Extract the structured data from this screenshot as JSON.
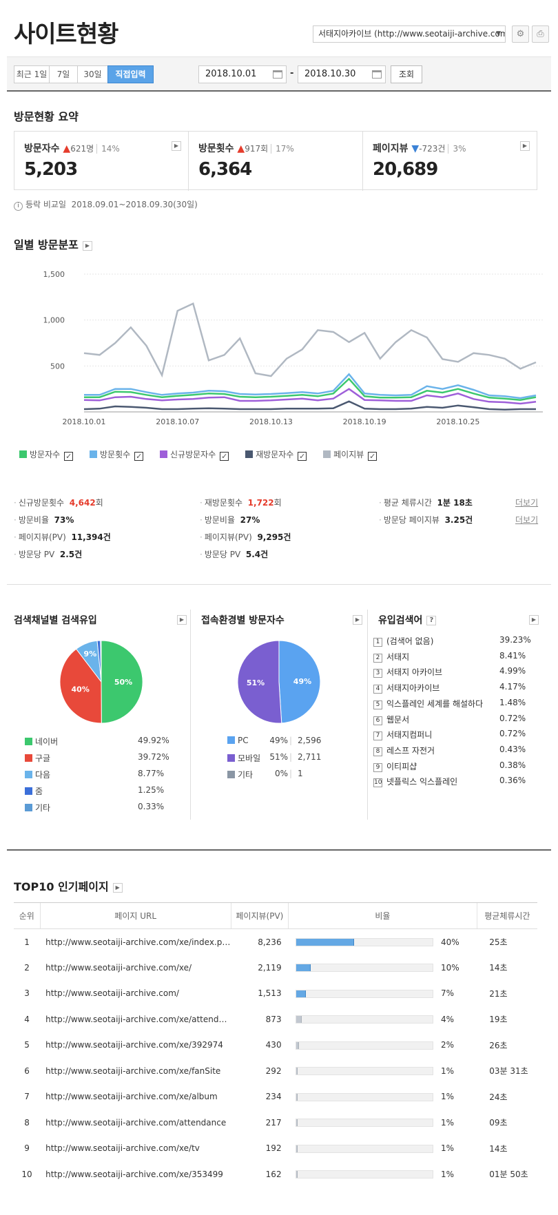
{
  "header": {
    "title": "사이트현황",
    "site_select": "서태지아카이브 (http://www.seotaiji-archive.com)",
    "settings_icon": "gear-icon",
    "print_icon": "print-icon"
  },
  "filter": {
    "periods": [
      "최근 1일",
      "7일",
      "30일",
      "직접입력"
    ],
    "active_period": "직접입력",
    "start_date": "2018.10.01",
    "end_date": "2018.10.30",
    "search_label": "조회",
    "separator": "-"
  },
  "summary": {
    "title": "방문현황 요약",
    "cards": [
      {
        "label": "방문자수",
        "direction": "up",
        "delta": "621명",
        "pct": "14%",
        "value": "5,203"
      },
      {
        "label": "방문횟수",
        "direction": "up",
        "delta": "917회",
        "pct": "17%",
        "value": "6,364"
      },
      {
        "label": "페이지뷰",
        "direction": "down",
        "delta": "-723건",
        "pct": "3%",
        "value": "20,689"
      }
    ],
    "compare_label": "등락 비교일",
    "compare_range": "2018.09.01~2018.09.30(30일)"
  },
  "daily": {
    "title": "일별 방문분포"
  },
  "chart_data": {
    "type": "line",
    "x": [
      "2018.10.01",
      "2018.10.02",
      "2018.10.03",
      "2018.10.04",
      "2018.10.05",
      "2018.10.06",
      "2018.10.07",
      "2018.10.08",
      "2018.10.09",
      "2018.10.10",
      "2018.10.11",
      "2018.10.12",
      "2018.10.13",
      "2018.10.14",
      "2018.10.15",
      "2018.10.16",
      "2018.10.17",
      "2018.10.18",
      "2018.10.19",
      "2018.10.20",
      "2018.10.21",
      "2018.10.22",
      "2018.10.23",
      "2018.10.24",
      "2018.10.25",
      "2018.10.26",
      "2018.10.27",
      "2018.10.28",
      "2018.10.29",
      "2018.10.30"
    ],
    "xticks": [
      "2018.10.01",
      "2018.10.07",
      "2018.10.13",
      "2018.10.19",
      "2018.10.25"
    ],
    "yticks": [
      "500",
      "1,000",
      "1,500"
    ],
    "ylim": [
      0,
      1500
    ],
    "series": [
      {
        "name": "방문자수",
        "color": "#3cc86e",
        "values": [
          160,
          160,
          220,
          215,
          185,
          160,
          175,
          185,
          200,
          195,
          165,
          160,
          165,
          175,
          185,
          170,
          200,
          360,
          170,
          155,
          155,
          160,
          230,
          210,
          250,
          200,
          155,
          145,
          130,
          160
        ]
      },
      {
        "name": "방문횟수",
        "color": "#6ab3ea",
        "values": [
          185,
          185,
          250,
          250,
          215,
          185,
          200,
          210,
          230,
          225,
          195,
          190,
          195,
          205,
          215,
          200,
          230,
          410,
          200,
          185,
          180,
          185,
          280,
          250,
          290,
          240,
          180,
          170,
          150,
          180
        ]
      },
      {
        "name": "신규방문자수",
        "color": "#9e5fd9",
        "values": [
          130,
          125,
          160,
          165,
          140,
          125,
          135,
          140,
          155,
          160,
          120,
          120,
          125,
          135,
          145,
          125,
          145,
          250,
          130,
          125,
          120,
          120,
          180,
          160,
          200,
          140,
          110,
          105,
          90,
          110
        ]
      },
      {
        "name": "재방문자수",
        "color": "#4a5870",
        "values": [
          30,
          35,
          60,
          55,
          45,
          30,
          30,
          35,
          40,
          35,
          30,
          30,
          30,
          35,
          35,
          35,
          40,
          115,
          35,
          30,
          30,
          35,
          55,
          45,
          70,
          50,
          30,
          25,
          30,
          30
        ]
      },
      {
        "name": "페이지뷰",
        "color": "#b0b8c2",
        "values": [
          640,
          620,
          750,
          920,
          720,
          400,
          1100,
          1180,
          560,
          620,
          800,
          420,
          390,
          580,
          680,
          890,
          870,
          760,
          860,
          580,
          760,
          890,
          810,
          575,
          545,
          640,
          620,
          580,
          470,
          540
        ]
      }
    ]
  },
  "stats": {
    "col1": [
      {
        "label": "신규방문횟수",
        "value": "4,642",
        "unit": "회"
      },
      {
        "label": "방문비율",
        "value": "73%"
      },
      {
        "label": "페이지뷰(PV)",
        "value": "11,394건"
      },
      {
        "label": "방문당 PV",
        "value": "2.5건"
      }
    ],
    "col2": [
      {
        "label": "재방문횟수",
        "value": "1,722",
        "unit": "회"
      },
      {
        "label": "방문비율",
        "value": "27%"
      },
      {
        "label": "페이지뷰(PV)",
        "value": "9,295건"
      },
      {
        "label": "방문당 PV",
        "value": "5.4건"
      }
    ],
    "col3": [
      {
        "label": "평균 체류시간",
        "value": "1분 18초"
      },
      {
        "label": "방문당 페이지뷰",
        "value": "3.25건"
      }
    ],
    "detail": "더보기"
  },
  "search_channel": {
    "title": "검색채널별 검색유입",
    "pie_labels": [
      "50%",
      "40%",
      "9%"
    ],
    "items": [
      {
        "name": "네이버",
        "pct": "49.92%",
        "value": 49.92,
        "color": "#3cc86e"
      },
      {
        "name": "구글",
        "pct": "39.72%",
        "value": 39.72,
        "color": "#e8493a"
      },
      {
        "name": "다음",
        "pct": "8.77%",
        "value": 8.77,
        "color": "#6ab3ea"
      },
      {
        "name": "줌",
        "pct": "1.25%",
        "value": 1.25,
        "color": "#3b6fd9"
      },
      {
        "name": "기타",
        "pct": "0.33%",
        "value": 0.33,
        "color": "#5b9bd5"
      }
    ]
  },
  "env": {
    "title": "접속환경별 방문자수",
    "pie_labels": [
      "49%",
      "51%"
    ],
    "items": [
      {
        "name": "PC",
        "pct": "49%",
        "count": "2,596",
        "value": 49,
        "color": "#5aa3f0"
      },
      {
        "name": "모바일",
        "pct": "51%",
        "count": "2,711",
        "value": 51,
        "color": "#7a5fd0"
      },
      {
        "name": "기타",
        "pct": "0%",
        "count": "1",
        "value": 0,
        "color": "#8a96a4"
      }
    ]
  },
  "keywords": {
    "title": "유입검색어",
    "help": "?",
    "items": [
      {
        "n": "1",
        "k": "(검색어 없음)",
        "p": "39.23%"
      },
      {
        "n": "2",
        "k": "서태지",
        "p": "8.41%"
      },
      {
        "n": "3",
        "k": "서태지 아카이브",
        "p": "4.99%"
      },
      {
        "n": "4",
        "k": "서태지아카이브",
        "p": "4.17%"
      },
      {
        "n": "5",
        "k": "익스플레인 세계를 해설하다",
        "p": "1.48%"
      },
      {
        "n": "6",
        "k": "웹문서",
        "p": "0.72%"
      },
      {
        "n": "7",
        "k": "서태지컴퍼니",
        "p": "0.72%"
      },
      {
        "n": "8",
        "k": "레스프 자전거",
        "p": "0.43%"
      },
      {
        "n": "9",
        "k": "이티피샵",
        "p": "0.38%"
      },
      {
        "n": "10",
        "k": "넷플릭스 익스플레인",
        "p": "0.36%"
      }
    ]
  },
  "top10": {
    "title": "TOP10 인기페이지",
    "columns": [
      "순위",
      "페이지 URL",
      "페이지뷰(PV)",
      "비율",
      "평균체류시간"
    ],
    "rows": [
      {
        "rank": "1",
        "url": "http://www.seotaiji-archive.com/xe/index.php",
        "pv": "8,236",
        "ratio": 40,
        "pct": "40%",
        "time": "25초"
      },
      {
        "rank": "2",
        "url": "http://www.seotaiji-archive.com/xe/",
        "pv": "2,119",
        "ratio": 10,
        "pct": "10%",
        "time": "14초"
      },
      {
        "rank": "3",
        "url": "http://www.seotaiji-archive.com/",
        "pv": "1,513",
        "ratio": 7,
        "pct": "7%",
        "time": "21초"
      },
      {
        "rank": "4",
        "url": "http://www.seotaiji-archive.com/xe/attendance",
        "pv": "873",
        "ratio": 4,
        "pct": "4%",
        "time": "19초"
      },
      {
        "rank": "5",
        "url": "http://www.seotaiji-archive.com/xe/392974",
        "pv": "430",
        "ratio": 2,
        "pct": "2%",
        "time": "26초"
      },
      {
        "rank": "6",
        "url": "http://www.seotaiji-archive.com/xe/fanSite",
        "pv": "292",
        "ratio": 1,
        "pct": "1%",
        "time": "03분 31초"
      },
      {
        "rank": "7",
        "url": "http://www.seotaiji-archive.com/xe/album",
        "pv": "234",
        "ratio": 1,
        "pct": "1%",
        "time": "24초"
      },
      {
        "rank": "8",
        "url": "http://www.seotaiji-archive.com/attendance",
        "pv": "217",
        "ratio": 1,
        "pct": "1%",
        "time": "09초"
      },
      {
        "rank": "9",
        "url": "http://www.seotaiji-archive.com/xe/tv",
        "pv": "192",
        "ratio": 1,
        "pct": "1%",
        "time": "14초"
      },
      {
        "rank": "10",
        "url": "http://www.seotaiji-archive.com/xe/353499",
        "pv": "162",
        "ratio": 1,
        "pct": "1%",
        "time": "01분 50초"
      }
    ]
  }
}
